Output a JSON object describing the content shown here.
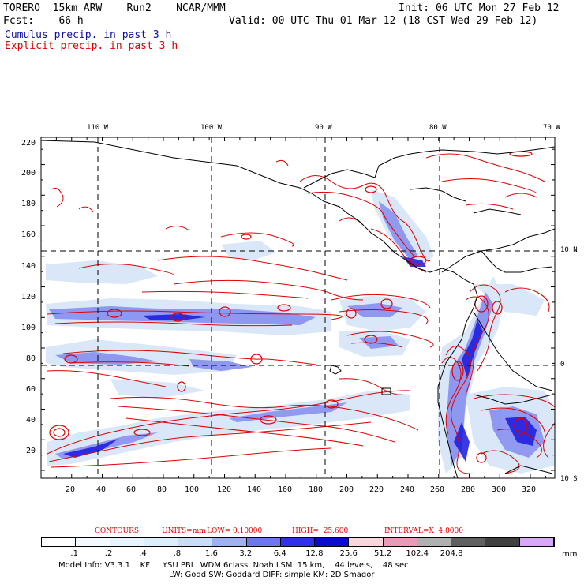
{
  "header": {
    "model_line": "TORERO  15km ARW    Run2    NCAR/MMM",
    "init": "Init: 06 UTC Mon 27 Feb 12",
    "fcst_line": "Fcst:    66 h",
    "valid": "Valid: 00 UTC Thu 01 Mar 12 (18 CST Wed 29 Feb 12)",
    "field1": "Cumulus precip. in past 3 h",
    "field2": "Explicit precip. in past 3 h"
  },
  "map": {
    "top_lon_labels": [
      "110 W",
      "100 W",
      "90 W",
      "80 W",
      "70 W"
    ],
    "left_ticks": [
      "220",
      "200",
      "180",
      "160",
      "140",
      "120",
      "100",
      "80",
      "60",
      "40",
      "20"
    ],
    "bottom_ticks": [
      "20",
      "40",
      "60",
      "80",
      "100",
      "120",
      "140",
      "160",
      "180",
      "200",
      "220",
      "240",
      "260",
      "280",
      "300",
      "320"
    ],
    "right_lat_labels": [
      "10 N",
      "0",
      "10 S"
    ],
    "colors": {
      "coast": "#000000",
      "grid": "#000000",
      "explicit": "#e00000",
      "cu_light": "#d8e6f8",
      "cu_mid": "#8890f0",
      "cu_dark": "#1818e0"
    }
  },
  "contours": {
    "label": "CONTOURS:",
    "units": "UNITS=mm",
    "low": "LOW= 0.10000",
    "high": "HIGH=  25.600",
    "interval": "INTERVAL=X  4.0000"
  },
  "colorbar": {
    "labels": [
      ".1",
      ".2",
      ".4",
      ".8",
      "1.6",
      "3.2",
      "6.4",
      "12.8",
      "25.6",
      "51.2",
      "102.4",
      "204.8"
    ],
    "unit": "mm",
    "colors": [
      "#ffffff",
      "#f4f8ff",
      "#e8f4ff",
      "#ddeefc",
      "#c9ddf6",
      "#9fb0f4",
      "#6e78ee",
      "#3030e8",
      "#0a0ad0",
      "#f8d6dc",
      "#f098b8",
      "#b0b0b0",
      "#606060",
      "#404040",
      "#d8a8f8"
    ]
  },
  "footer": {
    "line1": "Model Info: V3.3.1    KF     YSU PBL  WDM 6class  Noah LSM  15 km,    44 levels,    48 sec",
    "line2": "LW: Godd SW: Goddard DIFF: simple KM: 2D Smagor"
  }
}
